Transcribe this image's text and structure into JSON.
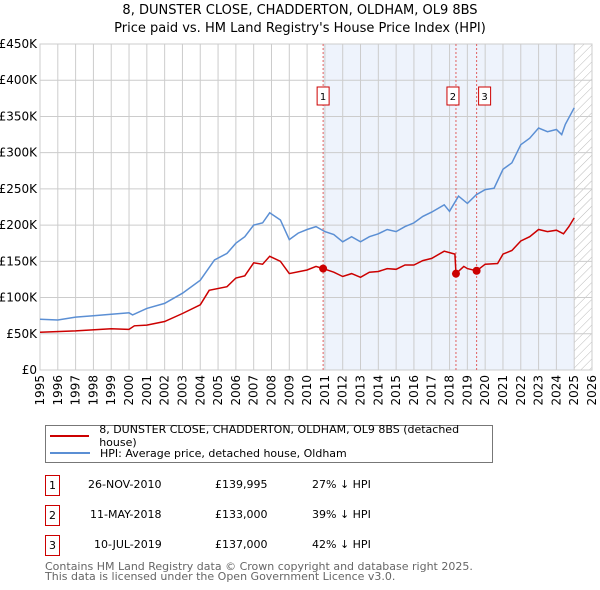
{
  "chart_data": {
    "type": "line",
    "title": "8, DUNSTER CLOSE, CHADDERTON, OLDHAM, OL9 8BS",
    "subtitle": "Price paid vs. HM Land Registry's House Price Index (HPI)",
    "xlim": [
      1995,
      2026
    ],
    "ylim": [
      0,
      450000
    ],
    "yticks": [
      0,
      50000,
      100000,
      150000,
      200000,
      250000,
      300000,
      350000,
      400000,
      450000
    ],
    "ytick_labels": [
      "£0",
      "£50K",
      "£100K",
      "£150K",
      "£200K",
      "£250K",
      "£300K",
      "£350K",
      "£400K",
      "£450K"
    ],
    "xticks": [
      1995,
      1996,
      1997,
      1998,
      1999,
      2000,
      2001,
      2002,
      2003,
      2004,
      2005,
      2006,
      2007,
      2008,
      2009,
      2010,
      2011,
      2012,
      2013,
      2014,
      2015,
      2016,
      2017,
      2018,
      2019,
      2020,
      2021,
      2022,
      2023,
      2024,
      2025,
      2026
    ],
    "grid": true,
    "shaded_range": [
      2010.9,
      2025.0
    ],
    "hatched_from": 2025.0,
    "series": [
      {
        "name": "8, DUNSTER CLOSE, CHADDERTON, OLDHAM, OL9 8BS (detached house)",
        "color": "#cc0000",
        "x": [
          1995,
          1997,
          1999,
          2000,
          2000.3,
          2001,
          2002,
          2003,
          2004,
          2004.5,
          2005.5,
          2006,
          2006.5,
          2007,
          2007.5,
          2007.9,
          2008.5,
          2009,
          2010,
          2010.5,
          2010.9,
          2011.5,
          2012,
          2012.5,
          2013,
          2013.5,
          2014,
          2014.5,
          2015,
          2015.5,
          2016,
          2016.5,
          2017,
          2017.7,
          2018.3,
          2018.36,
          2018.8,
          2019,
          2019.52,
          2020,
          2020.7,
          2021,
          2021.5,
          2022,
          2022.5,
          2023,
          2023.5,
          2024,
          2024.4,
          2024.7,
          2025
        ],
        "y": [
          52000,
          54000,
          57000,
          56000,
          61000,
          62000,
          67000,
          78000,
          90000,
          110000,
          115000,
          127000,
          130000,
          148000,
          146000,
          157000,
          150000,
          133000,
          138000,
          143000,
          139995,
          135000,
          129000,
          133000,
          128000,
          135000,
          136000,
          140000,
          139000,
          145000,
          145000,
          151000,
          154000,
          164000,
          160000,
          133000,
          143000,
          140000,
          137000,
          146000,
          147000,
          160000,
          165000,
          178000,
          184000,
          194000,
          191000,
          193000,
          188000,
          198000,
          210000
        ]
      },
      {
        "name": "HPI: Average price, detached house, Oldham",
        "color": "#5b8fd4",
        "x": [
          1995,
          1996,
          1997,
          1998,
          1999,
          2000,
          2000.2,
          2001,
          2002,
          2003,
          2004,
          2004.8,
          2005.5,
          2006,
          2006.5,
          2007,
          2007.5,
          2007.9,
          2008.5,
          2009,
          2009.5,
          2010,
          2010.5,
          2011,
          2011.5,
          2012,
          2012.5,
          2013,
          2013.5,
          2014,
          2014.5,
          2015,
          2015.5,
          2016,
          2016.5,
          2017,
          2017.7,
          2018,
          2018.5,
          2019,
          2019.5,
          2020,
          2020.5,
          2021,
          2021.5,
          2022,
          2022.5,
          2023,
          2023.5,
          2024,
          2024.3,
          2024.5,
          2025
        ],
        "y": [
          70000,
          69000,
          73000,
          75000,
          77000,
          79000,
          76000,
          85000,
          92000,
          106000,
          124000,
          152000,
          161000,
          175000,
          184000,
          200000,
          203000,
          217000,
          207000,
          180000,
          189000,
          194000,
          198000,
          191000,
          187000,
          177000,
          184000,
          177000,
          184000,
          188000,
          194000,
          191000,
          198000,
          203000,
          212000,
          218000,
          228000,
          219000,
          240000,
          230000,
          242000,
          249000,
          251000,
          277000,
          286000,
          311000,
          320000,
          334000,
          329000,
          332000,
          325000,
          339000,
          362000
        ]
      }
    ],
    "sales": [
      {
        "label": "1",
        "x": 2010.9,
        "y": 139995
      },
      {
        "label": "2",
        "x": 2018.36,
        "y": 133000
      },
      {
        "label": "3",
        "x": 2019.52,
        "y": 137000
      }
    ]
  },
  "legend": [
    "8, DUNSTER CLOSE, CHADDERTON, OLDHAM, OL9 8BS (detached house)",
    "HPI: Average price, detached house, Oldham"
  ],
  "transactions": [
    {
      "num": "1",
      "date": "26-NOV-2010",
      "price": "£139,995",
      "diff": "27% ↓ HPI"
    },
    {
      "num": "2",
      "date": "11-MAY-2018",
      "price": "£133,000",
      "diff": "39% ↓ HPI"
    },
    {
      "num": "3",
      "date": "10-JUL-2019",
      "price": "£137,000",
      "diff": "42% ↓ HPI"
    }
  ],
  "footer": [
    "Contains HM Land Registry data © Crown copyright and database right 2025.",
    "This data is licensed under the Open Government Licence v3.0."
  ]
}
